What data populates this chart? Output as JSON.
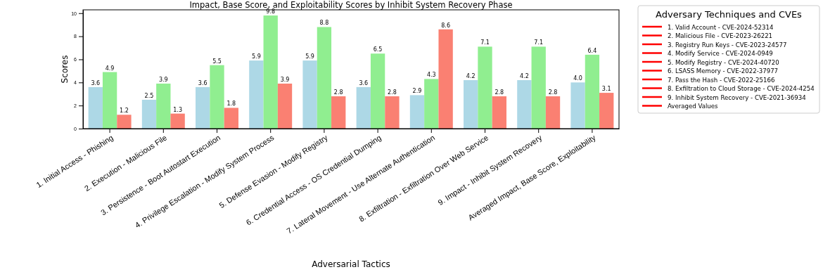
{
  "chart_data": {
    "type": "bar",
    "title": "Impact, Base Score, and Exploitability Scores by Inhibit System Recovery Phase",
    "xlabel": "Adversarial Tactics",
    "ylabel": "Scores",
    "categories": [
      "1. Initial Access - Phishing",
      "2. Execution - Malicious File",
      "3. Persistence - Boot Autostart Execution",
      "4. Privilege Escalation - Modify System Process",
      "5. Defense Evasion - Modify Registry",
      "6. Credential Access - OS Credential Dumping",
      "7. Lateral Movement - Use Alternate Authentication",
      "8. Exfiltration - Exfiltration Over Web Service",
      "9. Impact - Inhibit System Recovery",
      "Averaged Impact, Base Score, Exploitability"
    ],
    "series": [
      {
        "color": "#add8e6",
        "values": [
          3.6,
          2.5,
          3.6,
          5.9,
          5.9,
          3.6,
          2.9,
          4.2,
          4.2,
          4.0
        ],
        "value_labels": [
          "3.6",
          "2.5",
          "3.6",
          "5.9",
          "5.9",
          "3.6",
          "2.9",
          "4.2",
          "4.2",
          "4.0"
        ]
      },
      {
        "color": "#90ee90",
        "values": [
          4.9,
          3.9,
          5.5,
          9.8,
          8.8,
          6.5,
          4.3,
          7.1,
          7.1,
          6.4
        ],
        "value_labels": [
          "4.9",
          "3.9",
          "5.5",
          "9.8",
          "8.8",
          "6.5",
          "4.3",
          "7.1",
          "7.1",
          "6.4"
        ]
      },
      {
        "color": "#fa8072",
        "values": [
          1.2,
          1.3,
          1.8,
          3.9,
          2.8,
          2.8,
          8.6,
          2.8,
          2.8,
          3.1
        ],
        "value_labels": [
          "1.2",
          "1.3",
          "1.8",
          "3.9",
          "2.8",
          "2.8",
          "8.6",
          "2.8",
          "2.8",
          "3.1"
        ]
      }
    ],
    "ylim": [
      0,
      10.29
    ],
    "yticks": [
      0,
      2,
      4,
      6,
      8,
      10
    ],
    "legend_title": "Adversary Techniques and CVEs",
    "annotations": [
      "1. Valid Account - CVE-2024-52314",
      "2. Malicious File - CVE-2023-26221",
      "3. Registry Run Keys - CVE-2023-24577",
      "4. Modify Service - CVE-2024-0949",
      "5. Modify Registry - CVE-2024-40720",
      "6. LSASS Memory - CVE-2022-37977",
      "7. Pass the Hash - CVE-2022-25166",
      "8. Exfiltration to Cloud Storage - CVE-2024-4254",
      "9. Inhibit System Recovery - CVE-2021-36934",
      "Averaged Values"
    ]
  }
}
